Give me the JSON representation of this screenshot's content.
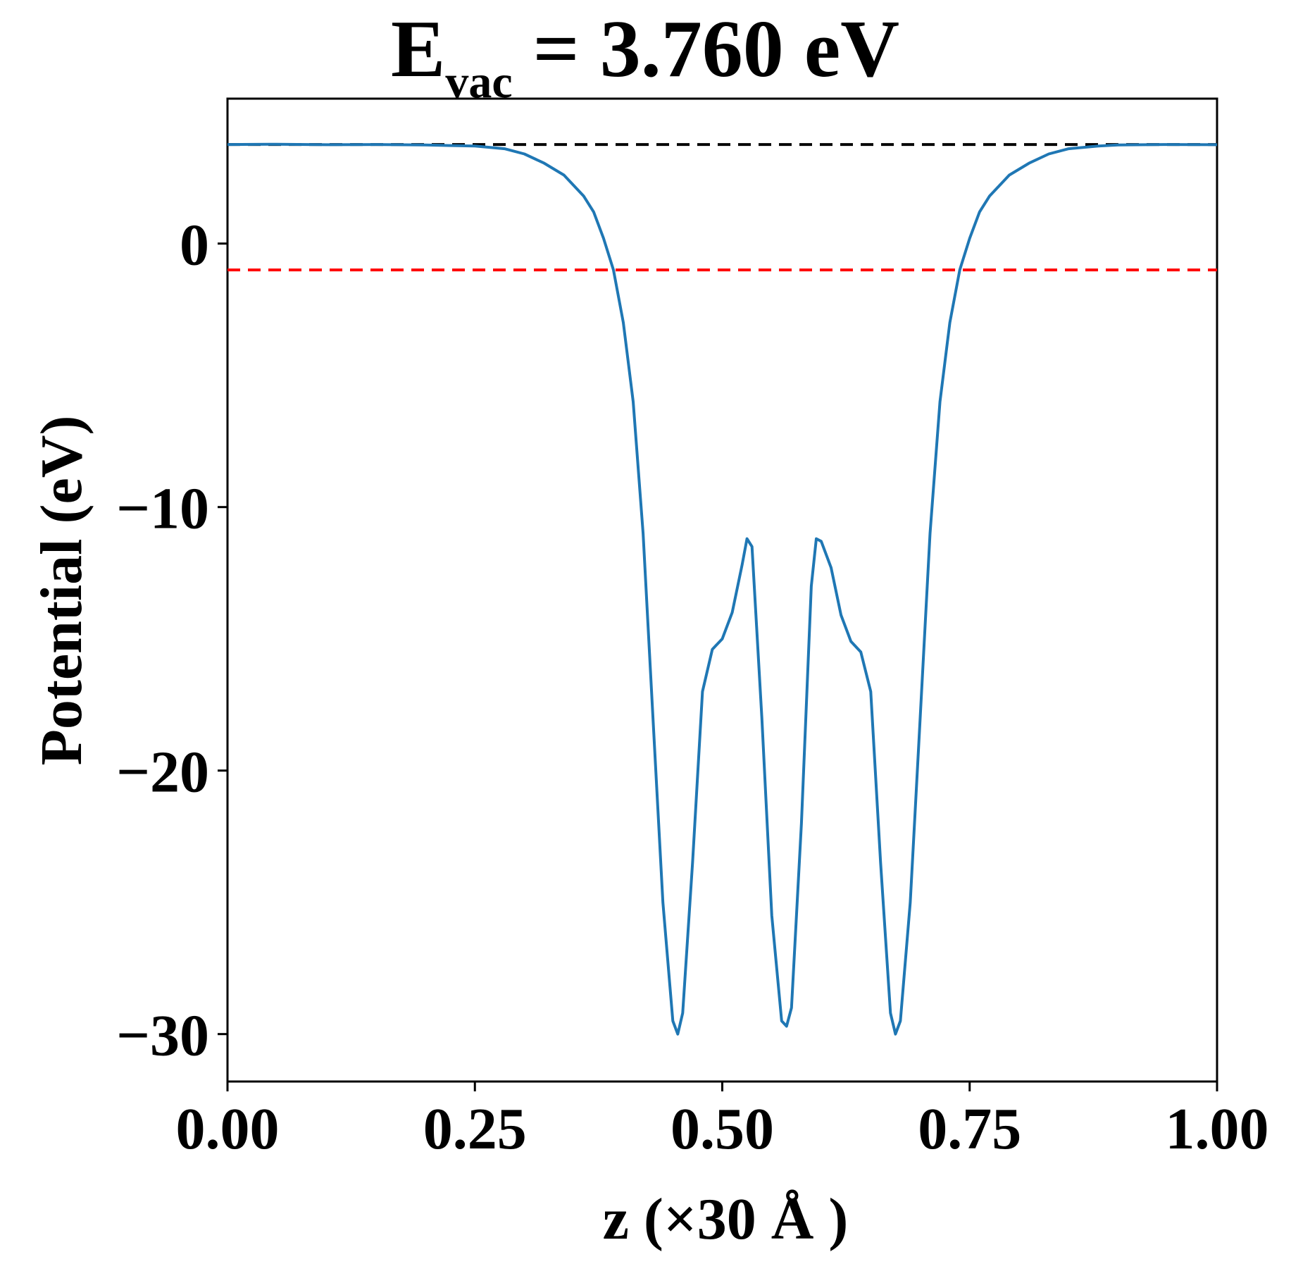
{
  "chart_data": {
    "type": "line",
    "title": {
      "base": "E",
      "sub": "vac",
      "rest": " = 3.760 eV"
    },
    "xlabel": "z (×30 Å )",
    "ylabel": "Potential (eV)",
    "xlim": [
      0.0,
      1.0
    ],
    "ylim": [
      -31.8,
      5.5
    ],
    "xticks": [
      {
        "value": 0.0,
        "label": "0.00"
      },
      {
        "value": 0.25,
        "label": "0.25"
      },
      {
        "value": 0.5,
        "label": "0.50"
      },
      {
        "value": 0.75,
        "label": "0.75"
      },
      {
        "value": 1.0,
        "label": "1.00"
      }
    ],
    "yticks": [
      {
        "value": 0,
        "label": "0"
      },
      {
        "value": -10,
        "label": "−10"
      },
      {
        "value": -20,
        "label": "−20"
      },
      {
        "value": -30,
        "label": "−30"
      }
    ],
    "grid": false,
    "hlines": [
      {
        "y": 3.76,
        "color": "#000000",
        "style": "dashed"
      },
      {
        "y": -1.0,
        "color": "#ff0000",
        "style": "dashed"
      }
    ],
    "series": [
      {
        "color": "#1f77b4",
        "points": [
          [
            0.0,
            3.76
          ],
          [
            0.05,
            3.77
          ],
          [
            0.1,
            3.75
          ],
          [
            0.15,
            3.76
          ],
          [
            0.2,
            3.74
          ],
          [
            0.25,
            3.7
          ],
          [
            0.28,
            3.6
          ],
          [
            0.3,
            3.4
          ],
          [
            0.32,
            3.05
          ],
          [
            0.34,
            2.6
          ],
          [
            0.36,
            1.8
          ],
          [
            0.37,
            1.2
          ],
          [
            0.38,
            0.2
          ],
          [
            0.39,
            -1.0
          ],
          [
            0.4,
            -3.0
          ],
          [
            0.41,
            -6.0
          ],
          [
            0.42,
            -11.0
          ],
          [
            0.43,
            -18.0
          ],
          [
            0.44,
            -25.0
          ],
          [
            0.45,
            -29.5
          ],
          [
            0.455,
            -30.0
          ],
          [
            0.46,
            -29.2
          ],
          [
            0.47,
            -23.5
          ],
          [
            0.48,
            -17.0
          ],
          [
            0.49,
            -15.4
          ],
          [
            0.5,
            -15.0
          ],
          [
            0.51,
            -14.0
          ],
          [
            0.52,
            -12.2
          ],
          [
            0.525,
            -11.2
          ],
          [
            0.53,
            -11.5
          ],
          [
            0.54,
            -18.0
          ],
          [
            0.55,
            -25.5
          ],
          [
            0.56,
            -29.5
          ],
          [
            0.565,
            -29.7
          ],
          [
            0.57,
            -29.0
          ],
          [
            0.58,
            -22.0
          ],
          [
            0.59,
            -13.0
          ],
          [
            0.595,
            -11.2
          ],
          [
            0.6,
            -11.3
          ],
          [
            0.61,
            -12.3
          ],
          [
            0.62,
            -14.1
          ],
          [
            0.63,
            -15.1
          ],
          [
            0.64,
            -15.5
          ],
          [
            0.65,
            -17.0
          ],
          [
            0.66,
            -23.5
          ],
          [
            0.67,
            -29.2
          ],
          [
            0.675,
            -30.0
          ],
          [
            0.68,
            -29.5
          ],
          [
            0.69,
            -25.0
          ],
          [
            0.7,
            -18.0
          ],
          [
            0.71,
            -11.0
          ],
          [
            0.72,
            -6.0
          ],
          [
            0.73,
            -3.0
          ],
          [
            0.74,
            -1.0
          ],
          [
            0.75,
            0.2
          ],
          [
            0.76,
            1.2
          ],
          [
            0.77,
            1.8
          ],
          [
            0.79,
            2.6
          ],
          [
            0.81,
            3.05
          ],
          [
            0.83,
            3.4
          ],
          [
            0.85,
            3.6
          ],
          [
            0.88,
            3.7
          ],
          [
            0.9,
            3.74
          ],
          [
            0.95,
            3.76
          ],
          [
            1.0,
            3.75
          ]
        ]
      }
    ]
  }
}
